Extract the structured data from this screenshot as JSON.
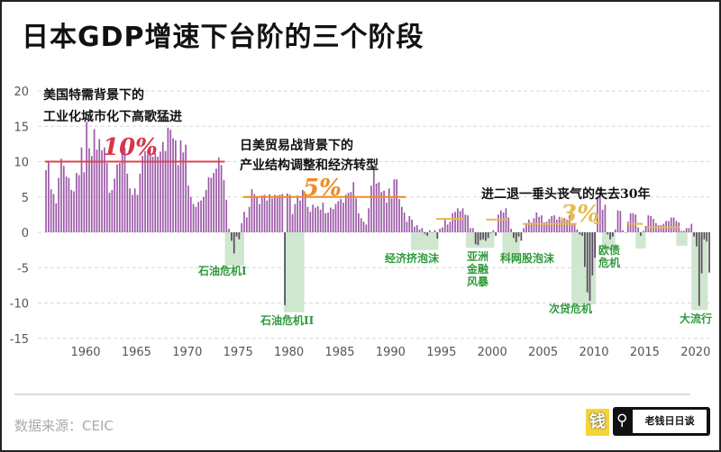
{
  "title": "日本GDP增速下台阶的三个阶段",
  "source": "数据来源：CEIC",
  "logo": {
    "mark": "钱",
    "name": "老钱日日谈",
    "icon": "search-icon"
  },
  "colors": {
    "positive_bar": "#9c5aa8",
    "negative_bar": "#5a4a5e",
    "shade": "#cfe6cf",
    "crisis_text": "#2f9a3c",
    "era1": "#e0424e",
    "era2": "#f08a24",
    "era3": "#e9b949",
    "grid": "#d8d8d8"
  },
  "chart_data": {
    "type": "bar",
    "title": "日本GDP增速下台阶的三个阶段",
    "frequency": "quarterly",
    "x_start": 1956,
    "ylim": [
      -15,
      20
    ],
    "xlim": [
      1956,
      2021.5
    ],
    "yticks": [
      20,
      15,
      10,
      5,
      0,
      -5,
      -10,
      -15
    ],
    "xticks": [
      1960,
      1965,
      1970,
      1975,
      1980,
      1985,
      1990,
      1995,
      2000,
      2005,
      2010,
      2015,
      2020
    ],
    "grid": "horizontal dashed",
    "values": [
      8.8,
      10,
      6.1,
      5.4,
      4.1,
      7.7,
      10.4,
      9.4,
      7.9,
      7.7,
      6,
      5.8,
      8.4,
      8.1,
      12,
      8.5,
      15.6,
      11.9,
      10.8,
      14.6,
      11.7,
      13.2,
      11.6,
      12,
      9.8,
      5.6,
      6,
      7.6,
      9.6,
      9.8,
      11.9,
      12,
      8.3,
      6.2,
      5.3,
      6.2,
      5.3,
      8.3,
      10.8,
      11.5,
      11,
      12.2,
      10.7,
      11.2,
      10.7,
      11.4,
      12.8,
      11.5,
      14.8,
      14.5,
      13.3,
      13,
      9.5,
      13,
      11.3,
      12.4,
      6.6,
      5,
      4,
      3.6,
      4.3,
      4.5,
      5,
      6,
      7.8,
      7.7,
      8.4,
      9,
      10.6,
      9.5,
      7.4,
      4.6,
      0.5,
      -1.2,
      -3,
      -0.6,
      -1,
      1.3,
      2.9,
      2.1,
      3.6,
      6.1,
      5.4,
      5,
      4,
      5.2,
      5.3,
      4.5,
      5.4,
      4.8,
      5.3,
      5.2,
      5.3,
      5.4,
      -10.3,
      5.5,
      5.3,
      2.6,
      4,
      5.2,
      4.5,
      6,
      5.4,
      3.6,
      2.9,
      3.9,
      3.5,
      3.7,
      3.2,
      4.2,
      2.7,
      2.8,
      3.5,
      3.3,
      4,
      4.4,
      4.7,
      4.2,
      5.3,
      5.6,
      5.7,
      7.1,
      4.8,
      2.7,
      2,
      1.5,
      1.1,
      3.4,
      6.6,
      9.2,
      6.9,
      7.1,
      5.7,
      5.9,
      4.2,
      6.2,
      4.8,
      7.5,
      7.5,
      4.7,
      3.6,
      2.8,
      1.5,
      2.3,
      1.8,
      0.8,
      1,
      0.4,
      0.6,
      -0.2,
      -0.5,
      0.3,
      0,
      0.3,
      -0.9,
      0.5,
      0.7,
      2,
      1.1,
      1.5,
      2.7,
      2.9,
      3.4,
      3,
      3.4,
      2.5,
      2.4,
      0.6,
      0.6,
      -1.7,
      -1.8,
      -1.1,
      -1,
      -1.2,
      -0.8,
      -0.1,
      0.3,
      -0.5,
      2.5,
      3.1,
      2.8,
      3.4,
      2.1,
      0.5,
      -0.8,
      -1.4,
      -0.6,
      -1.2,
      0.6,
      1.1,
      1.8,
      1.4,
      2,
      2.8,
      2.2,
      2.4,
      1.4,
      1.5,
      1.9,
      2.3,
      2.4,
      1.8,
      2.2,
      1.6,
      2,
      1.8,
      2.4,
      1.3,
      1.2,
      0.4,
      -0.3,
      -0.5,
      -4.9,
      -8.5,
      -9.7,
      -6.1,
      -3.6,
      5,
      6.3,
      3.2,
      3.9,
      -0.3,
      -1,
      -0.6,
      0.4,
      3.1,
      3,
      0.3,
      0,
      1.5,
      2.7,
      2.7,
      2.5,
      0.7,
      -0.5,
      0.2,
      0.9,
      2.4,
      2.3,
      1.9,
      1.3,
      1,
      1,
      1.2,
      1.6,
      1.6,
      2.1,
      2.1,
      1.6,
      1.4,
      0.2,
      0.2,
      0.6,
      0.6,
      1.2,
      -0.6,
      -2,
      -10.4,
      -5.8,
      -1,
      -1.3,
      -5.7
    ],
    "eras": [
      {
        "label_line1": "美国特需背景下的",
        "label_line2": "工业化城市化下高歌猛进",
        "avg_label": "10%",
        "avg": 10,
        "from": 1956,
        "to": 1973.7
      },
      {
        "label_line1": "日美贸易战背景下的",
        "label_line2": "产业结构调整和经济转型",
        "avg_label": "5%",
        "avg": 5,
        "from": 1975.5,
        "to": 1991.5
      },
      {
        "label_line1": "进二退一垂头丧气的失去30年",
        "avg_label": "3%",
        "segments": [
          {
            "from": 1994.5,
            "to": 1997.3,
            "avg": 1.9
          },
          {
            "from": 1999.4,
            "to": 2001.6,
            "avg": 1.8
          },
          {
            "from": 2003,
            "to": 2008.3,
            "avg": 1.2
          },
          {
            "from": 2010,
            "to": 2010.8,
            "avg": 1.3
          },
          {
            "from": 2013.3,
            "to": 2014.8,
            "avg": 1.2
          },
          {
            "from": 2015.2,
            "to": 2018.4,
            "avg": 0.7
          }
        ]
      }
    ],
    "crises": [
      {
        "label": "石油危机I",
        "from": 1973.7,
        "to": 1975.6,
        "low": -4.7
      },
      {
        "label": "石油危机II",
        "from": 1979.5,
        "to": 1981.5,
        "low": -11.3
      },
      {
        "label": "经济挤泡沫",
        "from": 1992.0,
        "to": 1994.7,
        "low": -2.5
      },
      {
        "label": "亚洲金融风暴",
        "lines": [
          "亚洲",
          "金融",
          "风暴"
        ],
        "from": 1997.4,
        "to": 2000.2,
        "low": -2.2
      },
      {
        "label": "科网股泡沫",
        "from": 2001.0,
        "to": 2002.7,
        "low": -3.9
      },
      {
        "label": "次贷危机",
        "from": 2007.8,
        "to": 2010.2,
        "low": -10.2
      },
      {
        "label": "欧债危机",
        "lines": [
          "欧债",
          "危机"
        ],
        "from": 2010.8,
        "to": 2012.1,
        "low": -2.3
      },
      {
        "label": "",
        "from": 2014.1,
        "to": 2015.1,
        "low": -2.3
      },
      {
        "label": "",
        "from": 2018.1,
        "to": 2019.2,
        "low": -1.9
      },
      {
        "label": "大流行",
        "from": 2019.6,
        "to": 2021.2,
        "low": -11
      }
    ]
  }
}
